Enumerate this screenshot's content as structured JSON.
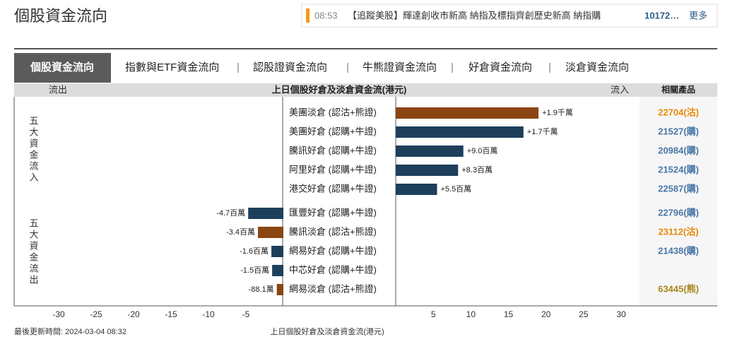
{
  "header": {
    "title": "個股資金流向",
    "ticker": {
      "time": "08:53",
      "text": "【追蹤美股】輝達創收市新高 納指及標指齊創歷史新高 納指購",
      "highlight": "10172…",
      "more": "更多"
    }
  },
  "tabs": [
    "個股資金流向",
    "指數與ETF資金流向",
    "認股證資金流向",
    "牛熊證資金流向",
    "好倉資金流向",
    "淡倉資金流向"
  ],
  "chart_data": {
    "type": "bar",
    "orientation": "horizontal",
    "title": "上日個股好倉及淡倉資金流(港元)",
    "left_label": "流出",
    "right_label": "流入",
    "product_header": "相關產品",
    "group_labels": [
      "五大資金流入",
      "五大資金流出"
    ],
    "categories": [
      "美團淡倉 (認沽+熊證)",
      "美團好倉 (認購+牛證)",
      "騰訊好倉 (認購+牛證)",
      "阿里好倉 (認購+牛證)",
      "港交好倉 (認購+牛證)",
      "匯豐好倉 (認購+牛證)",
      "騰訊淡倉 (認沽+熊證)",
      "網易好倉 (認購+牛證)",
      "中芯好倉 (認購+牛證)",
      "網易淡倉 (認沽+熊證)"
    ],
    "values": [
      19,
      17,
      9.0,
      8.3,
      5.5,
      -4.7,
      -3.4,
      -1.6,
      -1.5,
      -0.881
    ],
    "value_labels": [
      "+1.9千萬",
      "+1.7千萬",
      "+9.0百萬",
      "+8.3百萬",
      "+5.5百萬",
      "-4.7百萬",
      "-3.4百萬",
      "-1.6百萬",
      "-1.5百萬",
      "-88.1萬"
    ],
    "colors": [
      "#8b4513",
      "#1e3f5c",
      "#1e3f5c",
      "#1e3f5c",
      "#1e3f5c",
      "#1e3f5c",
      "#8b4513",
      "#1e3f5c",
      "#1e3f5c",
      "#8b4513"
    ],
    "products": [
      "22704(沽)",
      "21527(購)",
      "20984(購)",
      "21524(購)",
      "22587(購)",
      "22796(購)",
      "23112(沽)",
      "21438(購)",
      null,
      "63445(熊)"
    ],
    "product_colors": [
      "#e8890c",
      "#4a78a8",
      "#4a78a8",
      "#4a78a8",
      "#4a78a8",
      "#4a78a8",
      "#e8890c",
      "#4a78a8",
      null,
      "#a8861e"
    ],
    "xlim": [
      -30,
      30
    ],
    "xticks": [
      -30,
      -25,
      -20,
      -15,
      -10,
      -5,
      5,
      10,
      15,
      20,
      25,
      30
    ]
  },
  "footer": {
    "updated": "最後更新時間: 2024-03-04 08:32",
    "axis_label": "上日個股好倉及淡倉資金流(港元)"
  }
}
